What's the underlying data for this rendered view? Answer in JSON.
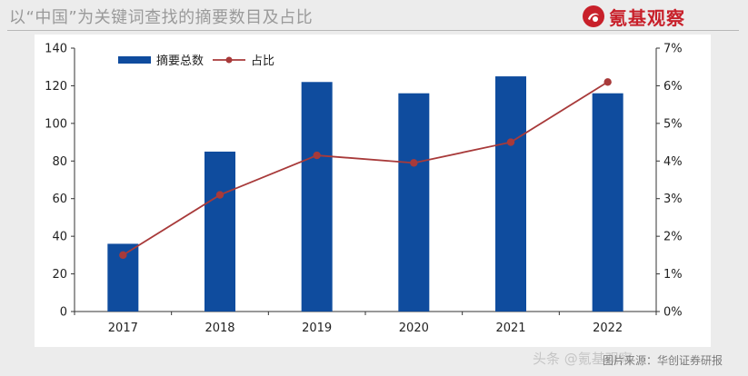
{
  "slide": {
    "title": "以“中国”为关键词查找的摘要数目及占比",
    "logo_text": "氪基观察",
    "source_note": "图片来源：华创证券研报",
    "watermark": "头条 @氪基观察"
  },
  "colors": {
    "bar": "#0f4c9e",
    "line": "#a83a3a",
    "logo": "#c8202a"
  },
  "chart_data": {
    "type": "bar",
    "categories": [
      "2017",
      "2018",
      "2019",
      "2020",
      "2021",
      "2022"
    ],
    "series": [
      {
        "name": "摘要总数",
        "type": "bar",
        "axis": "left",
        "values": [
          36,
          85,
          122,
          116,
          125,
          116
        ]
      },
      {
        "name": "占比",
        "type": "line",
        "axis": "right",
        "values": [
          1.5,
          3.1,
          4.15,
          3.95,
          4.5,
          6.1
        ]
      }
    ],
    "ylim": [
      0,
      140
    ],
    "yticks": [
      "0",
      "20",
      "40",
      "60",
      "80",
      "100",
      "120",
      "140"
    ],
    "y2lim": [
      0,
      7
    ],
    "y2ticks": [
      "0%",
      "1%",
      "2%",
      "3%",
      "4%",
      "5%",
      "6%",
      "7%"
    ],
    "legend_position": "top-left",
    "grid": false
  }
}
